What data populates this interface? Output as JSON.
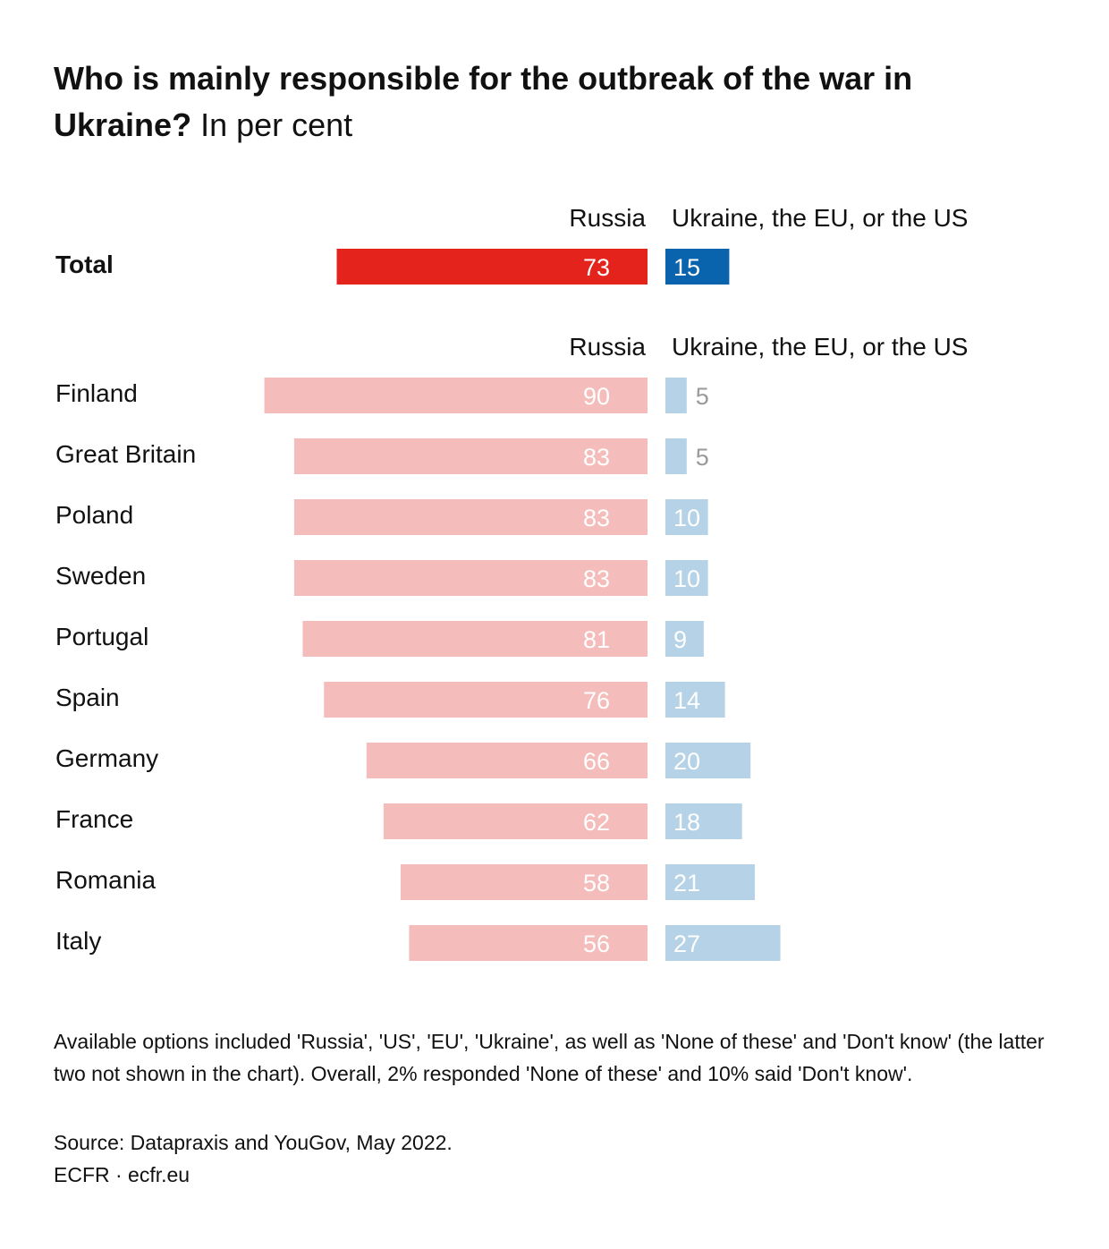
{
  "title": {
    "bold": "Who is mainly responsible for the outbreak of the war in Ukraine?",
    "light": "In per cent"
  },
  "colors": {
    "russia_total": "#e3231c",
    "us_total": "#0a64ad",
    "russia_light": "#f4bcbb",
    "us_light": "#b5d2e6",
    "value_light_text": "#ffffff",
    "value_outside_text": "#9a9a9a"
  },
  "chart_data": {
    "type": "bar",
    "orientation": "horizontal-diverging",
    "unit": "per cent",
    "series_names": [
      "Russia",
      "Ukraine, the EU, or the US"
    ],
    "total": {
      "label": "Total",
      "russia": 73,
      "west": 15
    },
    "categories": [
      "Finland",
      "Great Britain",
      "Poland",
      "Sweden",
      "Portugal",
      "Spain",
      "Germany",
      "France",
      "Romania",
      "Italy"
    ],
    "series": [
      {
        "name": "Russia",
        "values": [
          90,
          83,
          83,
          83,
          81,
          76,
          66,
          62,
          58,
          56
        ]
      },
      {
        "name": "Ukraine, the EU, or the US",
        "values": [
          5,
          5,
          10,
          10,
          9,
          14,
          20,
          18,
          21,
          27
        ]
      }
    ]
  },
  "headers": {
    "top_left": "Russia",
    "top_right": "Ukraine, the EU, or the US",
    "mid_left": "Russia",
    "mid_right": "Ukraine, the EU, or the US"
  },
  "footnote": "Available options included 'Russia', 'US', 'EU', 'Ukraine', as well as 'None of these' and 'Don't know' (the latter two not shown in the chart). Overall, 2% responded 'None of these' and 10% said 'Don't know'.",
  "source": "Source: Datapraxis and YouGov, May 2022.",
  "brand": "ECFR · ecfr.eu"
}
